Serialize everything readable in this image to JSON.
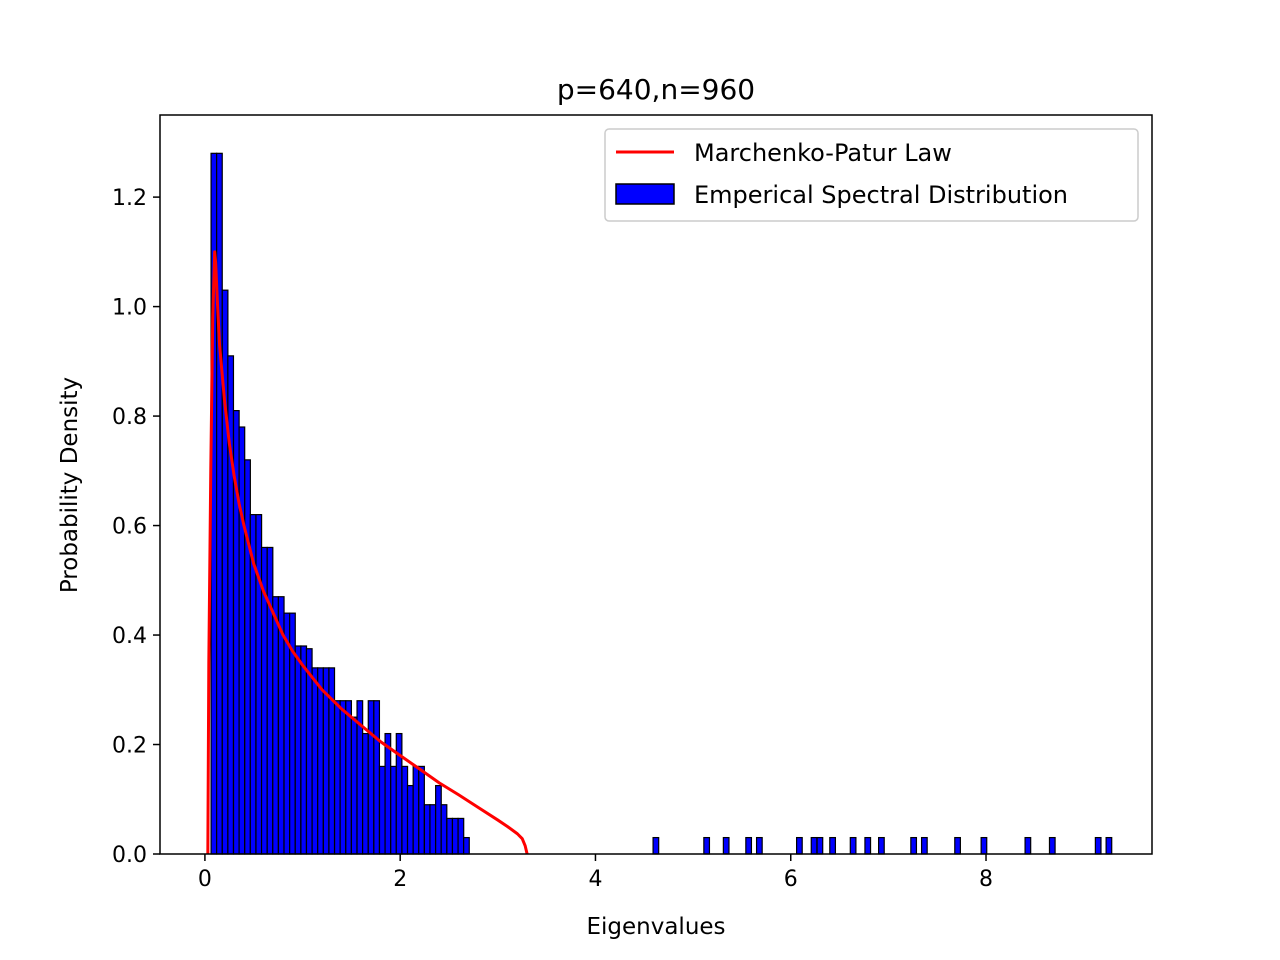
{
  "chart_data": {
    "type": "bar",
    "title": "p=640,n=960",
    "xlabel": "Eigenvalues",
    "ylabel": "Probability Density",
    "xlim": [
      -0.46,
      9.7
    ],
    "ylim": [
      0,
      1.35
    ],
    "xticks": [
      0,
      2,
      4,
      6,
      8
    ],
    "xtick_labels": [
      "0",
      "2",
      "4",
      "6",
      "8"
    ],
    "yticks": [
      0.0,
      0.2,
      0.4,
      0.6,
      0.8,
      1.0,
      1.2
    ],
    "ytick_labels": [
      "0.0",
      "0.2",
      "0.4",
      "0.6",
      "0.8",
      "1.0",
      "1.2"
    ],
    "grid": false,
    "legend_position": "top-right",
    "histogram": {
      "name": "Emperical Spectral Distribution",
      "color": "#0000ff",
      "edgecolor": "#000000",
      "bin_width": 0.0575,
      "bins": [
        [
          0.063,
          1.28
        ],
        [
          0.12,
          1.28
        ],
        [
          0.178,
          1.03
        ],
        [
          0.235,
          0.91
        ],
        [
          0.293,
          0.81
        ],
        [
          0.35,
          0.78
        ],
        [
          0.408,
          0.72
        ],
        [
          0.465,
          0.62
        ],
        [
          0.523,
          0.62
        ],
        [
          0.58,
          0.56
        ],
        [
          0.638,
          0.56
        ],
        [
          0.695,
          0.47
        ],
        [
          0.753,
          0.47
        ],
        [
          0.81,
          0.44
        ],
        [
          0.868,
          0.44
        ],
        [
          0.925,
          0.38
        ],
        [
          0.983,
          0.38
        ],
        [
          1.04,
          0.375
        ],
        [
          1.098,
          0.34
        ],
        [
          1.155,
          0.34
        ],
        [
          1.213,
          0.34
        ],
        [
          1.27,
          0.34
        ],
        [
          1.328,
          0.28
        ],
        [
          1.385,
          0.28
        ],
        [
          1.443,
          0.28
        ],
        [
          1.5,
          0.25
        ],
        [
          1.558,
          0.28
        ],
        [
          1.615,
          0.22
        ],
        [
          1.673,
          0.28
        ],
        [
          1.73,
          0.28
        ],
        [
          1.788,
          0.16
        ],
        [
          1.845,
          0.22
        ],
        [
          1.903,
          0.16
        ],
        [
          1.96,
          0.22
        ],
        [
          2.018,
          0.16
        ],
        [
          2.075,
          0.125
        ],
        [
          2.133,
          0.16
        ],
        [
          2.19,
          0.16
        ],
        [
          2.248,
          0.09
        ],
        [
          2.305,
          0.09
        ],
        [
          2.363,
          0.125
        ],
        [
          2.42,
          0.09
        ],
        [
          2.478,
          0.065
        ],
        [
          2.535,
          0.065
        ],
        [
          2.593,
          0.065
        ],
        [
          2.65,
          0.03
        ],
        [
          4.59,
          0.03
        ],
        [
          5.11,
          0.03
        ],
        [
          5.31,
          0.03
        ],
        [
          5.54,
          0.03
        ],
        [
          5.65,
          0.03
        ],
        [
          6.06,
          0.03
        ],
        [
          6.21,
          0.03
        ],
        [
          6.27,
          0.03
        ],
        [
          6.4,
          0.03
        ],
        [
          6.61,
          0.03
        ],
        [
          6.76,
          0.03
        ],
        [
          6.9,
          0.03
        ],
        [
          7.23,
          0.03
        ],
        [
          7.34,
          0.03
        ],
        [
          7.68,
          0.03
        ],
        [
          7.95,
          0.03
        ],
        [
          8.4,
          0.03
        ],
        [
          8.65,
          0.03
        ],
        [
          9.12,
          0.03
        ],
        [
          9.23,
          0.03
        ]
      ]
    },
    "curve": {
      "name": "Marchenko-Patur Law",
      "color": "#ff0000",
      "points": [
        [
          0.03,
          0.0
        ],
        [
          0.04,
          0.35
        ],
        [
          0.06,
          0.7
        ],
        [
          0.08,
          0.98
        ],
        [
          0.1,
          1.1
        ],
        [
          0.11,
          1.08
        ],
        [
          0.13,
          1.0
        ],
        [
          0.15,
          0.93
        ],
        [
          0.2,
          0.83
        ],
        [
          0.25,
          0.75
        ],
        [
          0.3,
          0.69
        ],
        [
          0.35,
          0.64
        ],
        [
          0.4,
          0.6
        ],
        [
          0.5,
          0.53
        ],
        [
          0.6,
          0.48
        ],
        [
          0.7,
          0.44
        ],
        [
          0.8,
          0.4
        ],
        [
          0.9,
          0.37
        ],
        [
          1.0,
          0.345
        ],
        [
          1.2,
          0.3
        ],
        [
          1.4,
          0.265
        ],
        [
          1.6,
          0.235
        ],
        [
          1.8,
          0.205
        ],
        [
          2.0,
          0.18
        ],
        [
          2.2,
          0.155
        ],
        [
          2.4,
          0.13
        ],
        [
          2.6,
          0.108
        ],
        [
          2.8,
          0.085
        ],
        [
          3.0,
          0.062
        ],
        [
          3.1,
          0.05
        ],
        [
          3.2,
          0.037
        ],
        [
          3.25,
          0.028
        ],
        [
          3.28,
          0.015
        ],
        [
          3.3,
          0.0
        ]
      ]
    }
  }
}
